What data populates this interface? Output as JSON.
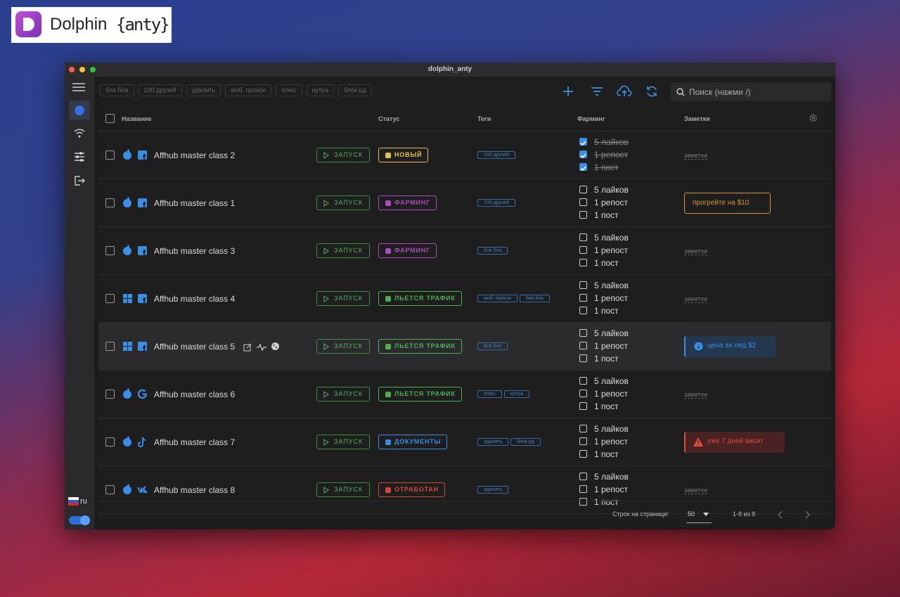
{
  "logo": {
    "name": "Dolphin",
    "brace": "{anty}"
  },
  "window_title": "dolphin_anty",
  "sidebar": {
    "language": "ru"
  },
  "toolbar": {
    "tag_filters": [
      "бла бла",
      "100 друзей",
      "удалить",
      "моб. прокси",
      "плюс",
      "нутра",
      "блок рд"
    ],
    "search_placeholder": "Поиск (нажми /)"
  },
  "table": {
    "headers": [
      "Название",
      "Статус",
      "Теги",
      "Фарминг",
      "Заметки"
    ],
    "launch_label": "ЗАПУСК",
    "rows": [
      {
        "name": "Affhub master class 2",
        "os": "apple",
        "platform": "facebook",
        "status": {
          "label": "НОВЫЙ",
          "color": "#e3c14a"
        },
        "tags": [
          "100 друзей"
        ],
        "farming": [
          {
            "label": "5 лайков",
            "done": true
          },
          {
            "label": "1 репост",
            "done": true
          },
          {
            "label": "1 пост",
            "done": true
          }
        ],
        "note": {
          "text": "заметки",
          "style": "placeholder"
        }
      },
      {
        "name": "Affhub master class 1",
        "os": "apple",
        "platform": "facebook",
        "status": {
          "label": "ФАРМИНГ",
          "color": "#a84dbb"
        },
        "tags": [
          "100 друзей"
        ],
        "farming": [
          {
            "label": "5 лайков",
            "done": false
          },
          {
            "label": "1 репост",
            "done": false
          },
          {
            "label": "1 пост",
            "done": false
          }
        ],
        "note": {
          "text": "прогрейте на $10",
          "style": "warning"
        }
      },
      {
        "name": "Affhub master class 3",
        "os": "apple",
        "platform": "facebook",
        "status": {
          "label": "ФАРМИНГ",
          "color": "#a84dbb"
        },
        "tags": [
          "бла бла"
        ],
        "farming": [
          {
            "label": "5 лайков",
            "done": false
          },
          {
            "label": "1 репост",
            "done": false
          },
          {
            "label": "1 пост",
            "done": false
          }
        ],
        "note": {
          "text": "заметки",
          "style": "placeholder"
        }
      },
      {
        "name": "Affhub master class 4",
        "os": "windows",
        "platform": "facebook",
        "status": {
          "label": "ЛЬЕТСЯ ТРАФИК",
          "color": "#4caf50"
        },
        "tags": [
          "моб. прокси",
          "бла бла"
        ],
        "farming": [
          {
            "label": "5 лайков",
            "done": false
          },
          {
            "label": "1 репост",
            "done": false
          },
          {
            "label": "1 пост",
            "done": false
          }
        ],
        "note": {
          "text": "заметки",
          "style": "placeholder"
        }
      },
      {
        "name": "Affhub master class 5",
        "os": "windows",
        "platform": "facebook",
        "selected": true,
        "status": {
          "label": "ЛЬЕТСЯ ТРАФИК",
          "color": "#4caf50"
        },
        "tags": [
          "бла бла"
        ],
        "farming": [
          {
            "label": "5 лайков",
            "done": false
          },
          {
            "label": "1 репост",
            "done": false
          },
          {
            "label": "1 пост",
            "done": false
          }
        ],
        "note": {
          "text": "цена за лид $2",
          "style": "info"
        }
      },
      {
        "name": "Affhub master class 6",
        "os": "apple",
        "platform": "google",
        "status": {
          "label": "ЛЬЕТСЯ ТРАФИК",
          "color": "#4caf50"
        },
        "tags": [
          "плюс",
          "нутра"
        ],
        "farming": [
          {
            "label": "5 лайков",
            "done": false
          },
          {
            "label": "1 репост",
            "done": false
          },
          {
            "label": "1 пост",
            "done": false
          }
        ],
        "note": {
          "text": "заметки",
          "style": "placeholder"
        }
      },
      {
        "name": "Affhub master class 7",
        "os": "apple",
        "platform": "tiktok",
        "status": {
          "label": "ДОКУМЕНТЫ",
          "color": "#3a8ee6"
        },
        "tags": [
          "удалить",
          "блок рд"
        ],
        "farming": [
          {
            "label": "5 лайков",
            "done": false
          },
          {
            "label": "1 репост",
            "done": false
          },
          {
            "label": "1 пост",
            "done": false
          }
        ],
        "note": {
          "text": "уже 7 дней висит",
          "style": "danger"
        }
      },
      {
        "name": "Affhub master class 8",
        "os": "apple",
        "platform": "vk",
        "status": {
          "label": "ОТРАБОТАН",
          "color": "#d8453b"
        },
        "tags": [
          "удалить"
        ],
        "farming": [
          {
            "label": "5 лайков",
            "done": false
          },
          {
            "label": "1 репост",
            "done": false
          },
          {
            "label": "1 пост",
            "done": false
          }
        ],
        "note": {
          "text": "заметки",
          "style": "placeholder"
        }
      }
    ]
  },
  "footer": {
    "rows_per_page_label": "Строк на странице:",
    "rows_per_page": 50,
    "range": "1-8 из 8"
  }
}
